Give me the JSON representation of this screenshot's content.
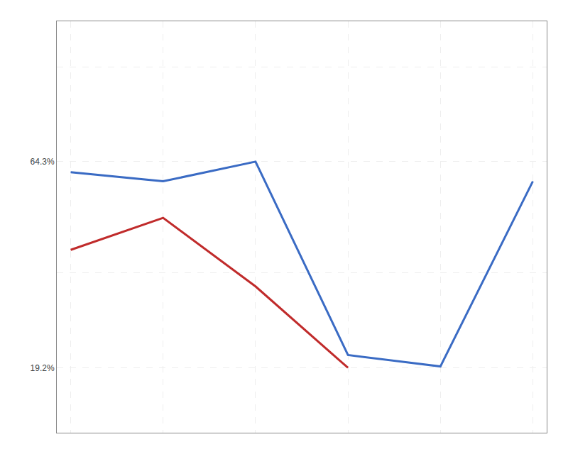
{
  "chart_data": {
    "type": "line",
    "series": [
      {
        "x": [
          0,
          1,
          2,
          3,
          4,
          5
        ],
        "values": [
          62,
          60,
          64.3,
          22,
          19.5,
          60
        ],
        "color": "#3A6BC4"
      },
      {
        "x": [
          0,
          1,
          2,
          3
        ],
        "values": [
          45,
          52,
          37,
          19.2
        ],
        "color": "#C02B2B"
      }
    ],
    "xlim": [
      -0.15,
      5.15
    ],
    "xticks": [
      0,
      1,
      2,
      3,
      4,
      5
    ],
    "ylim": [
      5,
      95
    ],
    "yticks": [
      {
        "value": 19.2,
        "label": "19.2%"
      },
      {
        "value": 40,
        "label": null
      },
      {
        "value": 64.3,
        "label": "64.3%"
      },
      {
        "value": 85,
        "label": null
      }
    ],
    "grid": true,
    "tick_labels": "y"
  }
}
